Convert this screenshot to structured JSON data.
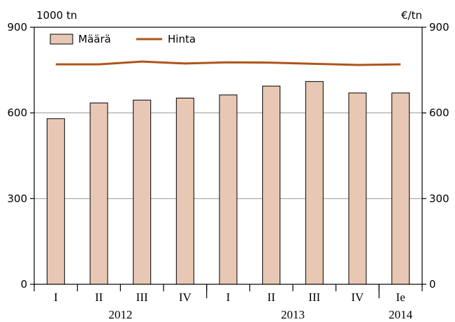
{
  "chart_data": {
    "type": "bar",
    "left_unit": "1000 tn",
    "right_unit": "€/tn",
    "categories": [
      "I",
      "II",
      "III",
      "IV",
      "I",
      "II",
      "III",
      "IV",
      "Ie"
    ],
    "year_labels": [
      {
        "label": "2012",
        "from": 0,
        "to": 3
      },
      {
        "label": "2013",
        "from": 4,
        "to": 7
      },
      {
        "label": "2014",
        "from": 8,
        "to": 8
      }
    ],
    "series": [
      {
        "name": "Määrä",
        "kind": "bar",
        "axis": "left",
        "color": "#e8c8b4",
        "values": [
          580,
          635,
          645,
          652,
          663,
          694,
          710,
          670,
          670
        ]
      },
      {
        "name": "Hinta",
        "kind": "line",
        "axis": "right",
        "color": "#b0541a",
        "values": [
          770,
          770,
          780,
          773,
          777,
          776,
          772,
          768,
          770
        ]
      }
    ],
    "ylim": [
      0,
      900
    ],
    "yticks": [
      0,
      300,
      600,
      900
    ],
    "y2lim": [
      0,
      900
    ],
    "y2ticks": [
      0,
      300,
      600,
      900
    ],
    "grid": true,
    "legend": "top-left"
  }
}
